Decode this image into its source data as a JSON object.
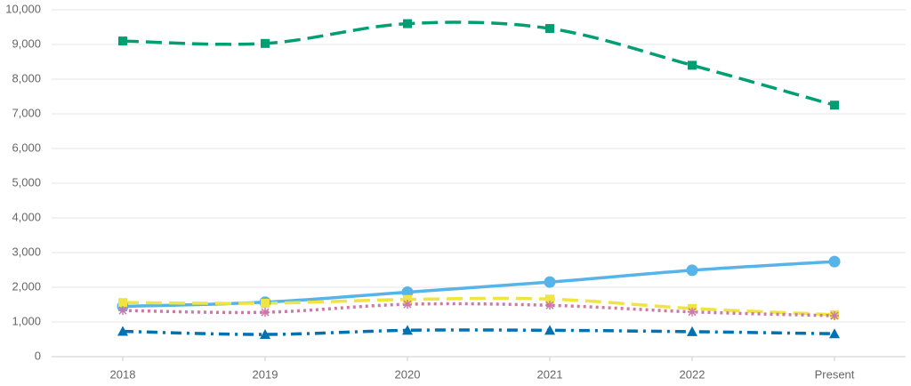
{
  "chart_data": {
    "type": "line",
    "categories": [
      "2018",
      "2019",
      "2020",
      "2021",
      "2022",
      "Present"
    ],
    "ylim": [
      0,
      10000
    ],
    "yticks": [
      0,
      {
        "value": 1000,
        "label": "1,000"
      },
      {
        "value": 2000,
        "label": "2,000"
      },
      {
        "value": 3000,
        "label": "3,000"
      },
      {
        "value": 4000,
        "label": "4,000"
      },
      {
        "value": 5000,
        "label": "5,000"
      },
      {
        "value": 6000,
        "label": "6,000"
      },
      {
        "value": 7000,
        "label": "7,000"
      },
      {
        "value": 8000,
        "label": "8,000"
      },
      {
        "value": 9000,
        "label": "9,000"
      },
      {
        "value": 10000,
        "label": "10,000"
      }
    ],
    "grid": true,
    "series": [
      {
        "color": "#009e73",
        "marker": "square",
        "dash": "dashed",
        "values": [
          9100,
          9030,
          9600,
          9460,
          8400,
          7250
        ]
      },
      {
        "color": "#56b4e9",
        "marker": "circle",
        "dash": "solid",
        "values": [
          1450,
          1570,
          1860,
          2150,
          2490,
          2740
        ]
      },
      {
        "color": "#f0e442",
        "marker": "square",
        "dash": "dashed",
        "values": [
          1560,
          1540,
          1650,
          1660,
          1390,
          1210
        ]
      },
      {
        "color": "#cc79a7",
        "marker": "asterisk",
        "dash": "dotted",
        "values": [
          1330,
          1280,
          1510,
          1480,
          1290,
          1180
        ]
      },
      {
        "color": "#0072b2",
        "marker": "triangle",
        "dash": "dashdot",
        "values": [
          730,
          640,
          760,
          760,
          720,
          660
        ]
      }
    ]
  }
}
